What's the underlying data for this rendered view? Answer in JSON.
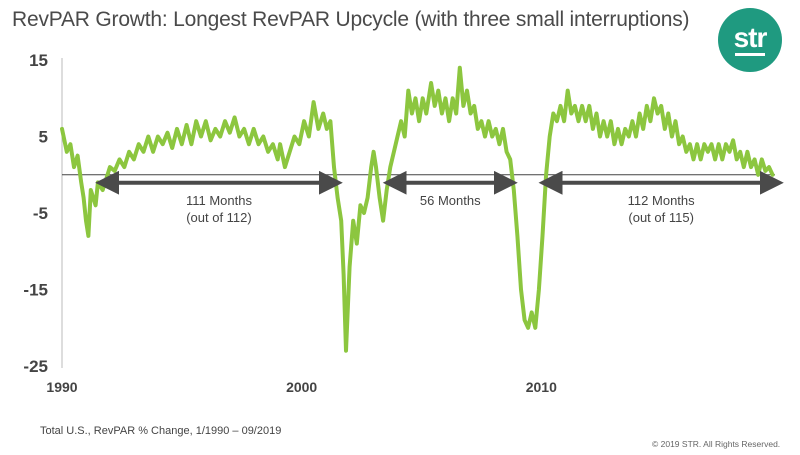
{
  "header": {
    "title": "RevPAR Growth: Longest RevPAR Upcycle (with three small interruptions)",
    "logo_text": "str"
  },
  "footer": {
    "note": "Total U.S., RevPAR % Change,  1/1990 – 09/2019",
    "copyright": "© 2019 STR. All Rights Reserved."
  },
  "colors": {
    "series": "#8cc63f",
    "arrow": "#4a4a4a",
    "logo": "#1f9a80",
    "axis": "#444444"
  },
  "chart_data": {
    "type": "line",
    "title": "RevPAR Growth: Longest RevPAR Upcycle (with three small interruptions)",
    "xlabel": "",
    "ylabel": "",
    "x_unit": "year",
    "xlim": [
      1990,
      2019.75
    ],
    "ylim": [
      -25,
      15
    ],
    "y_ticks": [
      15,
      5,
      -5,
      -15,
      -25
    ],
    "x_ticks": [
      1990,
      2000,
      2010
    ],
    "grid": false,
    "series": [
      {
        "values": [
          {
            "x": 1990.0,
            "y": 6
          },
          {
            "x": 1990.2,
            "y": 3
          },
          {
            "x": 1990.35,
            "y": 4
          },
          {
            "x": 1990.5,
            "y": 1
          },
          {
            "x": 1990.65,
            "y": 2.5
          },
          {
            "x": 1990.8,
            "y": -1
          },
          {
            "x": 1990.9,
            "y": -3
          },
          {
            "x": 1991.0,
            "y": -6
          },
          {
            "x": 1991.1,
            "y": -8
          },
          {
            "x": 1991.2,
            "y": -2
          },
          {
            "x": 1991.4,
            "y": -4
          },
          {
            "x": 1991.5,
            "y": -1
          },
          {
            "x": 1991.7,
            "y": -2
          },
          {
            "x": 1991.9,
            "y": 0
          },
          {
            "x": 1992.0,
            "y": 1
          },
          {
            "x": 1992.2,
            "y": 0.5
          },
          {
            "x": 1992.4,
            "y": 2
          },
          {
            "x": 1992.6,
            "y": 1
          },
          {
            "x": 1992.8,
            "y": 3
          },
          {
            "x": 1993.0,
            "y": 2
          },
          {
            "x": 1993.2,
            "y": 4
          },
          {
            "x": 1993.4,
            "y": 3
          },
          {
            "x": 1993.6,
            "y": 5
          },
          {
            "x": 1993.8,
            "y": 3
          },
          {
            "x": 1994.0,
            "y": 5
          },
          {
            "x": 1994.2,
            "y": 4
          },
          {
            "x": 1994.4,
            "y": 5.5
          },
          {
            "x": 1994.6,
            "y": 3.5
          },
          {
            "x": 1994.8,
            "y": 6
          },
          {
            "x": 1995.0,
            "y": 4
          },
          {
            "x": 1995.2,
            "y": 6.5
          },
          {
            "x": 1995.4,
            "y": 4
          },
          {
            "x": 1995.6,
            "y": 7
          },
          {
            "x": 1995.8,
            "y": 5
          },
          {
            "x": 1996.0,
            "y": 7
          },
          {
            "x": 1996.2,
            "y": 4.5
          },
          {
            "x": 1996.4,
            "y": 6
          },
          {
            "x": 1996.6,
            "y": 5
          },
          {
            "x": 1996.8,
            "y": 7
          },
          {
            "x": 1997.0,
            "y": 5.5
          },
          {
            "x": 1997.2,
            "y": 7.5
          },
          {
            "x": 1997.4,
            "y": 5
          },
          {
            "x": 1997.6,
            "y": 6
          },
          {
            "x": 1997.8,
            "y": 4
          },
          {
            "x": 1998.0,
            "y": 6
          },
          {
            "x": 1998.2,
            "y": 4
          },
          {
            "x": 1998.4,
            "y": 5
          },
          {
            "x": 1998.6,
            "y": 3
          },
          {
            "x": 1998.8,
            "y": 4
          },
          {
            "x": 1999.0,
            "y": 2
          },
          {
            "x": 1999.1,
            "y": 4
          },
          {
            "x": 1999.3,
            "y": 1
          },
          {
            "x": 1999.5,
            "y": 3
          },
          {
            "x": 1999.7,
            "y": 5
          },
          {
            "x": 1999.9,
            "y": 4
          },
          {
            "x": 2000.1,
            "y": 7
          },
          {
            "x": 2000.3,
            "y": 5
          },
          {
            "x": 2000.5,
            "y": 9.5
          },
          {
            "x": 2000.7,
            "y": 6
          },
          {
            "x": 2000.9,
            "y": 8
          },
          {
            "x": 2001.05,
            "y": 6
          },
          {
            "x": 2001.2,
            "y": 7
          },
          {
            "x": 2001.35,
            "y": 1
          },
          {
            "x": 2001.5,
            "y": -3
          },
          {
            "x": 2001.65,
            "y": -6
          },
          {
            "x": 2001.75,
            "y": -13
          },
          {
            "x": 2001.85,
            "y": -23
          },
          {
            "x": 2002.0,
            "y": -12
          },
          {
            "x": 2002.15,
            "y": -6
          },
          {
            "x": 2002.3,
            "y": -9
          },
          {
            "x": 2002.45,
            "y": -4
          },
          {
            "x": 2002.6,
            "y": -5
          },
          {
            "x": 2002.75,
            "y": -3
          },
          {
            "x": 2002.9,
            "y": 1
          },
          {
            "x": 2003.0,
            "y": 3
          },
          {
            "x": 2003.1,
            "y": 1
          },
          {
            "x": 2003.25,
            "y": -3
          },
          {
            "x": 2003.4,
            "y": -6
          },
          {
            "x": 2003.55,
            "y": -2
          },
          {
            "x": 2003.7,
            "y": 1
          },
          {
            "x": 2003.85,
            "y": 3
          },
          {
            "x": 2004.0,
            "y": 5
          },
          {
            "x": 2004.15,
            "y": 7
          },
          {
            "x": 2004.3,
            "y": 5
          },
          {
            "x": 2004.45,
            "y": 11
          },
          {
            "x": 2004.6,
            "y": 8
          },
          {
            "x": 2004.75,
            "y": 10
          },
          {
            "x": 2004.9,
            "y": 7
          },
          {
            "x": 2005.05,
            "y": 10
          },
          {
            "x": 2005.2,
            "y": 8
          },
          {
            "x": 2005.4,
            "y": 12
          },
          {
            "x": 2005.55,
            "y": 9
          },
          {
            "x": 2005.7,
            "y": 11
          },
          {
            "x": 2005.85,
            "y": 8
          },
          {
            "x": 2006.0,
            "y": 10
          },
          {
            "x": 2006.15,
            "y": 7
          },
          {
            "x": 2006.3,
            "y": 10
          },
          {
            "x": 2006.45,
            "y": 8
          },
          {
            "x": 2006.6,
            "y": 14
          },
          {
            "x": 2006.75,
            "y": 9
          },
          {
            "x": 2006.9,
            "y": 11
          },
          {
            "x": 2007.05,
            "y": 8
          },
          {
            "x": 2007.2,
            "y": 9
          },
          {
            "x": 2007.35,
            "y": 6
          },
          {
            "x": 2007.5,
            "y": 7
          },
          {
            "x": 2007.65,
            "y": 5
          },
          {
            "x": 2007.8,
            "y": 7
          },
          {
            "x": 2007.95,
            "y": 5
          },
          {
            "x": 2008.1,
            "y": 6
          },
          {
            "x": 2008.25,
            "y": 4
          },
          {
            "x": 2008.4,
            "y": 6
          },
          {
            "x": 2008.55,
            "y": 3
          },
          {
            "x": 2008.7,
            "y": 2
          },
          {
            "x": 2008.85,
            "y": -2
          },
          {
            "x": 2009.0,
            "y": -8
          },
          {
            "x": 2009.15,
            "y": -15
          },
          {
            "x": 2009.3,
            "y": -19
          },
          {
            "x": 2009.45,
            "y": -20
          },
          {
            "x": 2009.6,
            "y": -18
          },
          {
            "x": 2009.75,
            "y": -20
          },
          {
            "x": 2009.9,
            "y": -15
          },
          {
            "x": 2010.05,
            "y": -8
          },
          {
            "x": 2010.2,
            "y": 0
          },
          {
            "x": 2010.35,
            "y": 5
          },
          {
            "x": 2010.5,
            "y": 8
          },
          {
            "x": 2010.65,
            "y": 7
          },
          {
            "x": 2010.8,
            "y": 9
          },
          {
            "x": 2010.95,
            "y": 7
          },
          {
            "x": 2011.1,
            "y": 11
          },
          {
            "x": 2011.25,
            "y": 8
          },
          {
            "x": 2011.4,
            "y": 9
          },
          {
            "x": 2011.55,
            "y": 7
          },
          {
            "x": 2011.7,
            "y": 9
          },
          {
            "x": 2011.85,
            "y": 7
          },
          {
            "x": 2012.0,
            "y": 9
          },
          {
            "x": 2012.15,
            "y": 6
          },
          {
            "x": 2012.3,
            "y": 8
          },
          {
            "x": 2012.45,
            "y": 5
          },
          {
            "x": 2012.6,
            "y": 7
          },
          {
            "x": 2012.75,
            "y": 5
          },
          {
            "x": 2012.9,
            "y": 7
          },
          {
            "x": 2013.05,
            "y": 4
          },
          {
            "x": 2013.2,
            "y": 6
          },
          {
            "x": 2013.35,
            "y": 4
          },
          {
            "x": 2013.5,
            "y": 6
          },
          {
            "x": 2013.65,
            "y": 5
          },
          {
            "x": 2013.8,
            "y": 7
          },
          {
            "x": 2013.95,
            "y": 5
          },
          {
            "x": 2014.1,
            "y": 8
          },
          {
            "x": 2014.25,
            "y": 6
          },
          {
            "x": 2014.4,
            "y": 9
          },
          {
            "x": 2014.55,
            "y": 7
          },
          {
            "x": 2014.7,
            "y": 10
          },
          {
            "x": 2014.85,
            "y": 8
          },
          {
            "x": 2015.0,
            "y": 9
          },
          {
            "x": 2015.15,
            "y": 6
          },
          {
            "x": 2015.3,
            "y": 8
          },
          {
            "x": 2015.45,
            "y": 5
          },
          {
            "x": 2015.6,
            "y": 7
          },
          {
            "x": 2015.75,
            "y": 4
          },
          {
            "x": 2015.9,
            "y": 5
          },
          {
            "x": 2016.05,
            "y": 3
          },
          {
            "x": 2016.2,
            "y": 4
          },
          {
            "x": 2016.35,
            "y": 2
          },
          {
            "x": 2016.5,
            "y": 4
          },
          {
            "x": 2016.65,
            "y": 2
          },
          {
            "x": 2016.8,
            "y": 4
          },
          {
            "x": 2016.95,
            "y": 3
          },
          {
            "x": 2017.1,
            "y": 4
          },
          {
            "x": 2017.25,
            "y": 2
          },
          {
            "x": 2017.4,
            "y": 4
          },
          {
            "x": 2017.55,
            "y": 2
          },
          {
            "x": 2017.7,
            "y": 4
          },
          {
            "x": 2017.85,
            "y": 3
          },
          {
            "x": 2018.0,
            "y": 4.5
          },
          {
            "x": 2018.15,
            "y": 2
          },
          {
            "x": 2018.3,
            "y": 3
          },
          {
            "x": 2018.45,
            "y": 1
          },
          {
            "x": 2018.6,
            "y": 3
          },
          {
            "x": 2018.75,
            "y": 1
          },
          {
            "x": 2018.9,
            "y": 2
          },
          {
            "x": 2019.05,
            "y": 0
          },
          {
            "x": 2019.2,
            "y": 2
          },
          {
            "x": 2019.35,
            "y": 0.5
          },
          {
            "x": 2019.5,
            "y": 1
          },
          {
            "x": 2019.65,
            "y": 0
          }
        ]
      }
    ],
    "annotations": [
      {
        "label_lines": [
          "111 Months",
          "(out of 112)"
        ],
        "x_start": 1991.8,
        "x_end": 2001.3
      },
      {
        "label_lines": [
          "56 Months"
        ],
        "x_start": 2003.8,
        "x_end": 2008.6
      },
      {
        "label_lines": [
          "112 Months",
          "(out of 115)"
        ],
        "x_start": 2010.3,
        "x_end": 2019.7
      }
    ]
  }
}
